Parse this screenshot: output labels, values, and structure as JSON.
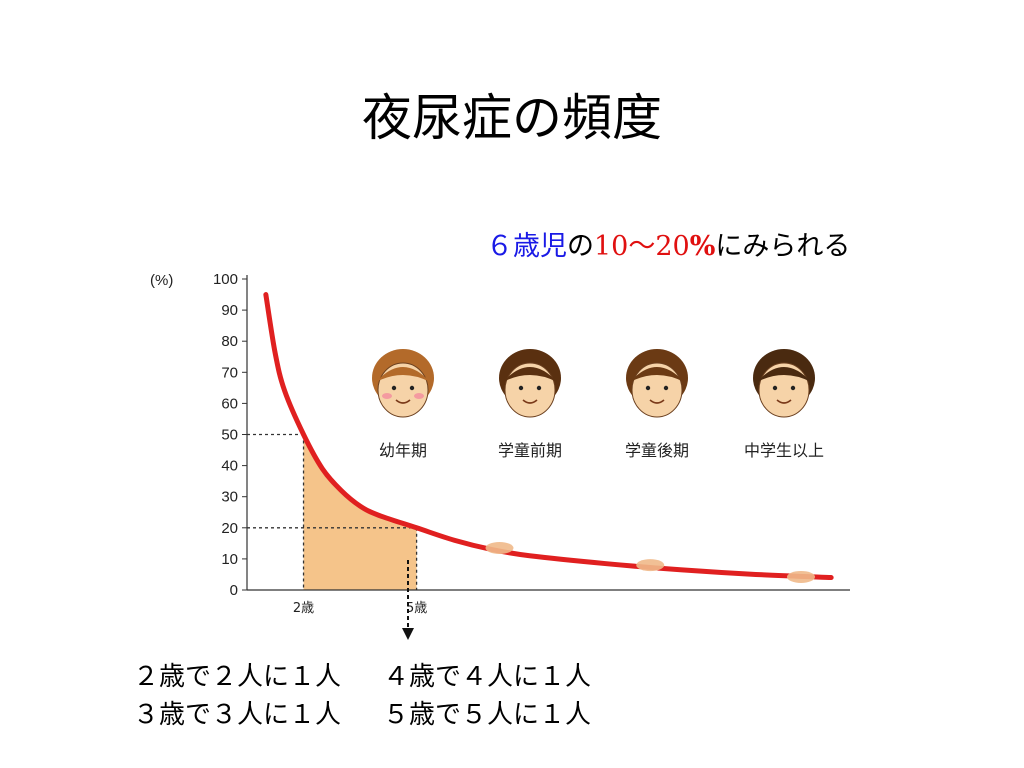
{
  "title": "夜尿症の頻度",
  "subtitle": {
    "part1": "６歳児",
    "part2": "の",
    "part3": "10〜20",
    "part4": "%",
    "part5": "にみられる"
  },
  "chart_data": {
    "type": "line",
    "ylabel": "(%)",
    "ylim": [
      0,
      100
    ],
    "yticks": [
      "0",
      "10",
      "20",
      "30",
      "40",
      "50",
      "60",
      "70",
      "80",
      "90",
      "100"
    ],
    "x_labels": [
      {
        "x": 2,
        "label": "2歳"
      },
      {
        "x": 5,
        "label": "5歳"
      }
    ],
    "xlim": [
      0.5,
      16.5
    ],
    "series": [
      {
        "color": "#e02020",
        "x": [
          1,
          1.25,
          1.5,
          2,
          2.5,
          3,
          3.5,
          4,
          5,
          6,
          7,
          8,
          10,
          12,
          14,
          16
        ],
        "y": [
          95,
          76,
          64,
          50,
          39,
          32,
          27,
          24,
          20,
          16,
          13,
          11,
          8.5,
          6.5,
          5,
          4
        ]
      }
    ],
    "reference_lines": [
      {
        "x": 2,
        "y": 50
      },
      {
        "x": 5,
        "y": 20
      }
    ],
    "shaded_area": {
      "x_from": 2,
      "x_to": 5,
      "color": "#f5c48a"
    },
    "markers": [
      {
        "x": 7.2,
        "y": 13.5
      },
      {
        "x": 11.2,
        "y": 8
      },
      {
        "x": 15.2,
        "y": 4.2
      }
    ],
    "stages": [
      "幼年期",
      "学童前期",
      "学童後期",
      "中学生以上"
    ]
  },
  "stats": [
    [
      "２歳で２人に１人",
      "４歳で４人に１人"
    ],
    [
      "３歳で３人に１人",
      "５歳で５人に１人"
    ]
  ],
  "colors": {
    "curve": "#e02020",
    "shade": "#f5c48a",
    "marker": "#f0b98a",
    "subtitle_blue": "#1a1ae6",
    "subtitle_red": "#e01010"
  }
}
